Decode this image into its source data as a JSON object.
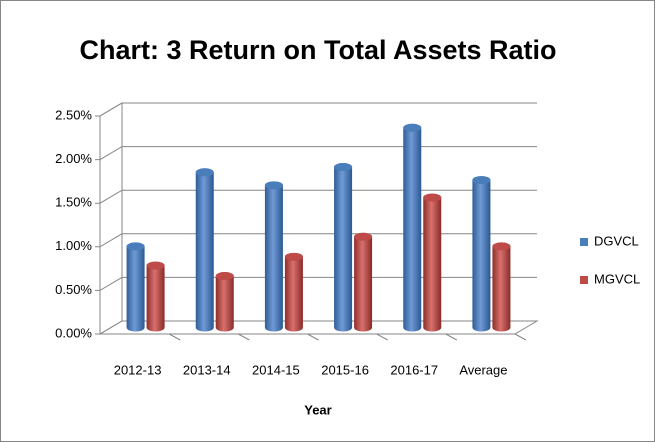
{
  "chart_data": {
    "type": "bar",
    "title": "Chart: 3 Return on Total Assets Ratio",
    "x_label": "Year",
    "categories": [
      "2012-13",
      "2013-14",
      "2014-15",
      "2015-16",
      "2016-17",
      "Average"
    ],
    "series": [
      {
        "name": "DGVCL",
        "color": "#4a7ebb",
        "values": [
          0.93,
          1.78,
          1.63,
          1.84,
          2.29,
          1.69
        ]
      },
      {
        "name": "MGVCL",
        "color": "#be4b48",
        "values": [
          0.71,
          0.59,
          0.81,
          1.04,
          1.49,
          0.93
        ]
      }
    ],
    "ylim": [
      0,
      2.5
    ],
    "yticks": [
      {
        "value": 0,
        "label": "0.00%"
      },
      {
        "value": 0.5,
        "label": "0.50%"
      },
      {
        "value": 1,
        "label": "1.00%"
      },
      {
        "value": 1.5,
        "label": "1.50%"
      },
      {
        "value": 2,
        "label": "2.00%"
      },
      {
        "value": 2.5,
        "label": "2.50%"
      }
    ],
    "grid": true,
    "legend": "right"
  }
}
